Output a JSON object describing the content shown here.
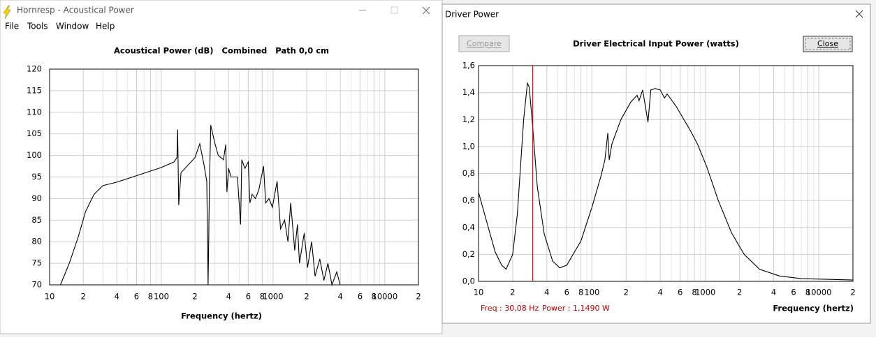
{
  "windows": [
    {
      "title": "Hornresp - Acoustical Power",
      "menu": [
        "File",
        "Tools",
        "Window",
        "Help"
      ]
    },
    {
      "title": "Driver Power",
      "buttons": [
        "Compare",
        "Close"
      ],
      "status": [
        "Freq : 30,08 Hz",
        "Power : 1,1490 W"
      ]
    }
  ],
  "chart_data": [
    {
      "type": "line",
      "title": "Acoustical Power (dB)   Combined   Path 0,0 cm",
      "x_label": "Frequency (hertz)",
      "log_x": true,
      "grid": true,
      "color": "#000000",
      "x": [
        12.5,
        15,
        18,
        21,
        25,
        30,
        40,
        60,
        100,
        130,
        138,
        140,
        143,
        150,
        200,
        221,
        240,
        255,
        262,
        270,
        277,
        300,
        323,
        360,
        377,
        386,
        400,
        420,
        480,
        512,
        525,
        560,
        600,
        620,
        649,
        695,
        746,
        822,
        858,
        920,
        986,
        1087,
        1166,
        1268,
        1359,
        1438,
        1563,
        1652,
        1723,
        1900,
        2036,
        2214,
        2375,
        2618,
        2851,
        3097,
        3366,
        3715,
        3981,
        4266
      ],
      "values": [
        70,
        75,
        81,
        87,
        91,
        93,
        93.8,
        95.3,
        97.2,
        98.5,
        99.5,
        106,
        88.5,
        96,
        99.5,
        102.7,
        98,
        94,
        70,
        94,
        107,
        103,
        100,
        99,
        102.5,
        91.5,
        97,
        95,
        95,
        84,
        99,
        97,
        98.5,
        89,
        91,
        90,
        92,
        97.5,
        89,
        90,
        88,
        94,
        83,
        85,
        80,
        89,
        78,
        84,
        75,
        82,
        74,
        80,
        72,
        76,
        71,
        75,
        70,
        73,
        70,
        70
      ],
      "xlim": [
        10,
        20000
      ],
      "xticks": [
        10,
        {
          "value": 20,
          "label": "2"
        },
        {
          "value": 40,
          "label": "4"
        },
        {
          "value": 60,
          "label": "6"
        },
        {
          "value": 80,
          "label": "8"
        },
        100,
        {
          "value": 200,
          "label": "2"
        },
        {
          "value": 400,
          "label": "4"
        },
        {
          "value": 600,
          "label": "6"
        },
        {
          "value": 800,
          "label": "8"
        },
        1000,
        {
          "value": 2000,
          "label": "2"
        },
        {
          "value": 4000,
          "label": "4"
        },
        {
          "value": 6000,
          "label": "6"
        },
        {
          "value": 8000,
          "label": "8"
        },
        10000,
        {
          "value": 20000,
          "label": "2"
        }
      ],
      "xminor": [
        30,
        50,
        70,
        90,
        300,
        500,
        700,
        900,
        3000,
        5000,
        7000,
        9000
      ],
      "ylim": [
        70,
        120
      ],
      "yticks": [
        70,
        75,
        80,
        85,
        90,
        95,
        100,
        105,
        110,
        115,
        120
      ]
    },
    {
      "type": "line",
      "title": "Driver Electrical Input Power (watts)",
      "x_label": "Frequency (hertz)",
      "log_x": true,
      "grid": true,
      "color": "#000000",
      "x": [
        10,
        12,
        14,
        16,
        17.5,
        20,
        22,
        25,
        27,
        28,
        30,
        33,
        38,
        45,
        52,
        60,
        80,
        100,
        120,
        130,
        138,
        142,
        150,
        180,
        220,
        250,
        260,
        280,
        312,
        330,
        360,
        400,
        436,
        460,
        550,
        724,
        850,
        1028,
        1300,
        1700,
        2200,
        3000,
        4500,
        7000,
        20000
      ],
      "values": [
        0.66,
        0.42,
        0.22,
        0.12,
        0.09,
        0.2,
        0.5,
        1.2,
        1.47,
        1.44,
        1.15,
        0.7,
        0.35,
        0.15,
        0.1,
        0.12,
        0.3,
        0.55,
        0.78,
        0.9,
        1.1,
        0.9,
        1.02,
        1.2,
        1.33,
        1.38,
        1.34,
        1.42,
        1.18,
        1.42,
        1.43,
        1.42,
        1.36,
        1.39,
        1.3,
        1.13,
        1.02,
        0.85,
        0.6,
        0.36,
        0.2,
        0.09,
        0.04,
        0.02,
        0.01
      ],
      "xlim": [
        10,
        20000
      ],
      "xticks": [
        10,
        {
          "value": 20,
          "label": "2"
        },
        {
          "value": 40,
          "label": "4"
        },
        {
          "value": 60,
          "label": "6"
        },
        {
          "value": 80,
          "label": "8"
        },
        100,
        {
          "value": 200,
          "label": "2"
        },
        {
          "value": 400,
          "label": "4"
        },
        {
          "value": 600,
          "label": "6"
        },
        {
          "value": 800,
          "label": "8"
        },
        1000,
        {
          "value": 2000,
          "label": "2"
        },
        {
          "value": 4000,
          "label": "4"
        },
        {
          "value": 6000,
          "label": "6"
        },
        {
          "value": 8000,
          "label": "8"
        },
        10000,
        {
          "value": 20000,
          "label": "2"
        }
      ],
      "xminor": [
        30,
        50,
        70,
        90,
        300,
        500,
        700,
        900,
        3000,
        5000,
        7000,
        9000
      ],
      "ylim": [
        0,
        1.6
      ],
      "yticks": [
        {
          "value": 0,
          "label": "0,0"
        },
        {
          "value": 0.2,
          "label": "0,2"
        },
        {
          "value": 0.4,
          "label": "0,4"
        },
        {
          "value": 0.6,
          "label": "0,6"
        },
        {
          "value": 0.8,
          "label": "0,8"
        },
        {
          "value": 1.0,
          "label": "1,0"
        },
        {
          "value": 1.2,
          "label": "1,2"
        },
        {
          "value": 1.4,
          "label": "1,4"
        },
        {
          "value": 1.6,
          "label": "1,6"
        }
      ],
      "cursor": 30.08,
      "cursor_color": "#c00000"
    }
  ]
}
